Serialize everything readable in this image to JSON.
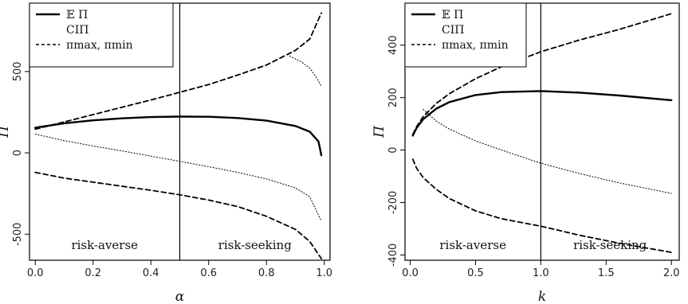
{
  "chart_data": [
    {
      "type": "line",
      "xlabel": "α",
      "ylabel": "Π",
      "xlim": [
        -0.02,
        1.02
      ],
      "ylim": [
        -660,
        920
      ],
      "x_ticks": [
        "0.0",
        "0.2",
        "0.4",
        "0.6",
        "0.8",
        "1.0"
      ],
      "y_ticks": [
        "-500",
        "0",
        "500"
      ],
      "x_tick_values": [
        0,
        0.2,
        0.4,
        0.6,
        0.8,
        1.0
      ],
      "y_tick_values": [
        -500,
        0,
        500
      ],
      "vline": 0.5,
      "region_labels": [
        "risk-averse",
        "risk-seeking"
      ],
      "legend": {
        "position": "top-left",
        "entries": [
          "𝔼 Π",
          "CIΠ",
          "πmax, πmin"
        ]
      },
      "series": [
        {
          "name": "𝔼 Π",
          "style": "solid",
          "x": [
            0,
            0.1,
            0.2,
            0.3,
            0.4,
            0.5,
            0.6,
            0.7,
            0.8,
            0.9,
            0.95,
            0.98,
            0.99
          ],
          "y": [
            155,
            182,
            200,
            212,
            220,
            223,
            222,
            214,
            198,
            165,
            130,
            70,
            -15
          ]
        },
        {
          "name": "CIΠ",
          "style": "dotted",
          "x": [
            0,
            0.1,
            0.2,
            0.3,
            0.4,
            0.5,
            0.6,
            0.7,
            0.8,
            0.9,
            0.95,
            0.99
          ],
          "y": [
            115,
            75,
            42,
            12,
            -20,
            -52,
            -85,
            -120,
            -160,
            -215,
            -270,
            -420
          ]
        },
        {
          "name": "CIΠ",
          "style": "dotted",
          "x": [
            0.88,
            0.92,
            0.95,
            0.97,
            0.99
          ],
          "y": [
            595,
            560,
            520,
            470,
            410
          ]
        },
        {
          "name": "πmax, πmin",
          "style": "dashed",
          "x": [
            0,
            0.1,
            0.2,
            0.3,
            0.4,
            0.5,
            0.6,
            0.7,
            0.8,
            0.9,
            0.95,
            0.99
          ],
          "y": [
            145,
            190,
            235,
            280,
            325,
            372,
            420,
            478,
            540,
            630,
            700,
            860
          ]
        },
        {
          "name": "πmax, πmin",
          "style": "dashed",
          "x": [
            0,
            0.1,
            0.2,
            0.3,
            0.4,
            0.5,
            0.6,
            0.7,
            0.8,
            0.9,
            0.95,
            0.99
          ],
          "y": [
            -120,
            -155,
            -180,
            -205,
            -230,
            -258,
            -290,
            -330,
            -390,
            -470,
            -545,
            -650
          ]
        }
      ]
    },
    {
      "type": "line",
      "xlabel": "k",
      "ylabel": "Π",
      "xlim": [
        -0.04,
        2.06
      ],
      "ylim": [
        -420,
        560
      ],
      "x_ticks": [
        "0.0",
        "0.5",
        "1.0",
        "1.5",
        "2.0"
      ],
      "y_ticks": [
        "-400",
        "-200",
        "0",
        "200",
        "400"
      ],
      "x_tick_values": [
        0,
        0.5,
        1.0,
        1.5,
        2.0
      ],
      "y_tick_values": [
        -400,
        -200,
        0,
        200,
        400
      ],
      "vline": 1.0,
      "region_labels": [
        "risk-averse",
        "risk-seeking"
      ],
      "legend": {
        "position": "top-left",
        "entries": [
          "𝔼 Π",
          "CIΠ",
          "πmax, πmin"
        ]
      },
      "series": [
        {
          "name": "𝔼 Π",
          "style": "solid",
          "x": [
            0.02,
            0.05,
            0.1,
            0.2,
            0.3,
            0.5,
            0.7,
            1.0,
            1.3,
            1.6,
            2.0
          ],
          "y": [
            55,
            85,
            118,
            158,
            183,
            210,
            221,
            225,
            219,
            208,
            190
          ]
        },
        {
          "name": "CIΠ",
          "style": "dotted",
          "x": [
            0.1,
            0.2,
            0.3,
            0.5,
            0.7,
            1.0,
            1.3,
            1.6,
            2.0
          ],
          "y": [
            155,
            110,
            80,
            35,
            0,
            -50,
            -90,
            -125,
            -165
          ]
        },
        {
          "name": "πmax, πmin",
          "style": "dashed",
          "x": [
            0.02,
            0.05,
            0.1,
            0.2,
            0.3,
            0.5,
            0.7,
            1.0,
            1.3,
            1.6,
            2.0
          ],
          "y": [
            60,
            90,
            128,
            178,
            215,
            272,
            318,
            375,
            420,
            460,
            520
          ]
        },
        {
          "name": "πmax, πmin",
          "style": "dashed",
          "x": [
            0.02,
            0.05,
            0.1,
            0.2,
            0.3,
            0.5,
            0.7,
            1.0,
            1.3,
            1.6,
            2.0
          ],
          "y": [
            -35,
            -70,
            -105,
            -150,
            -185,
            -232,
            -262,
            -290,
            -325,
            -355,
            -390
          ]
        }
      ]
    }
  ]
}
